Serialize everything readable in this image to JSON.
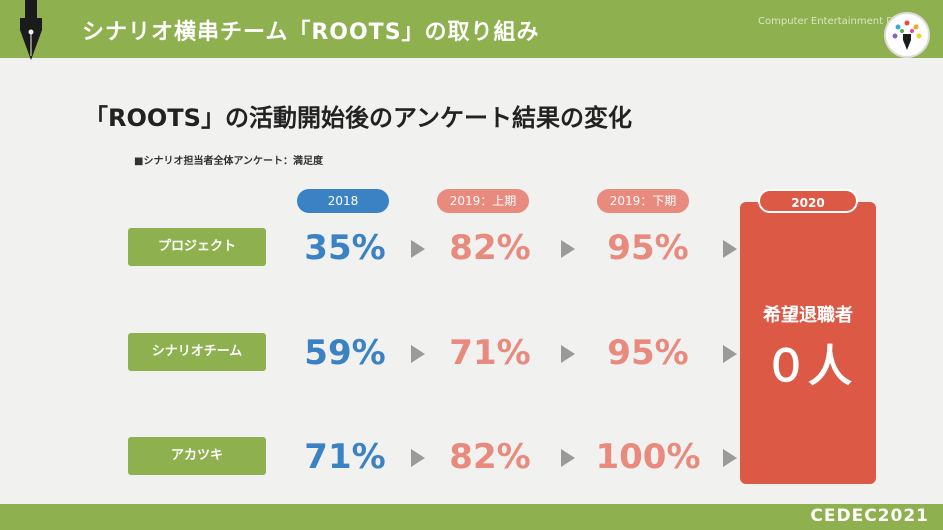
{
  "header": {
    "title": "シナリオ横串チーム「ROOTS」の取り組み",
    "org_text": "Computer Entertainment D",
    "pen_icon": "fountain-pen-nib-icon",
    "badge_icon": "cedec-badge-icon"
  },
  "subtitle": "「ROOTS」の活動開始後のアンケート結果の変化",
  "note": "■シナリオ担当者全体アンケート：満足度",
  "years": [
    "2018",
    "2019：上期",
    "2019：下期",
    "2020"
  ],
  "rows": [
    {
      "label": "プロジェクト",
      "values": [
        "35%",
        "82%",
        "95%"
      ]
    },
    {
      "label": "シナリオチーム",
      "values": [
        "59%",
        "71%",
        "95%"
      ]
    },
    {
      "label": "アカツキ",
      "values": [
        "71%",
        "82%",
        "100%"
      ]
    }
  ],
  "result": {
    "label": "希望退職者",
    "value": "０人"
  },
  "footer": {
    "brand": "CEDEC2021"
  },
  "colors": {
    "green": "#8fb04f",
    "blue": "#3b82c4",
    "salmon": "#e88a7e",
    "red": "#dc5a45"
  }
}
